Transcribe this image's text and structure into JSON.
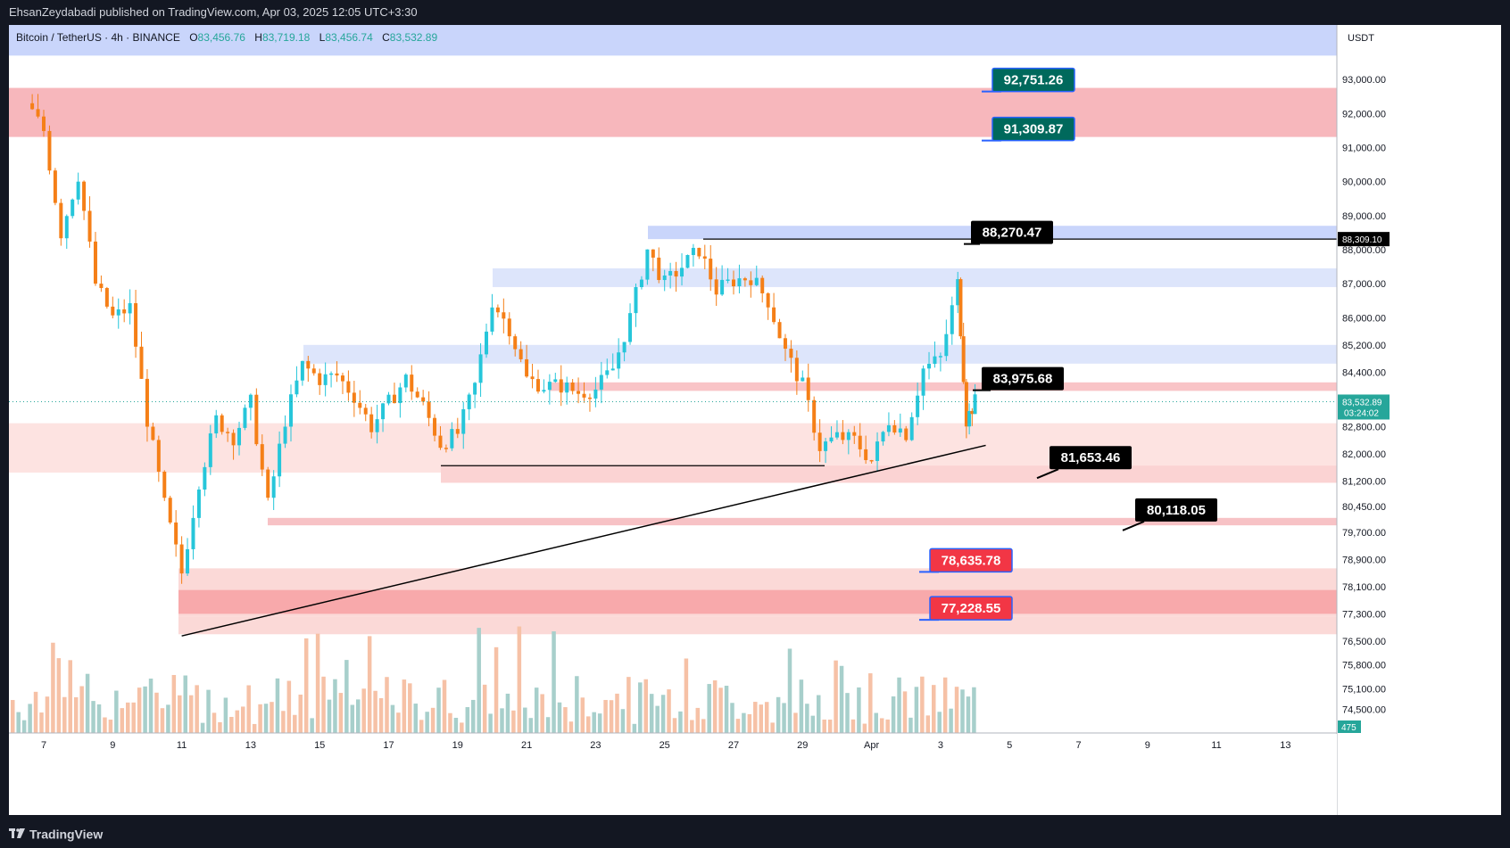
{
  "header": {
    "published": "EhsanZeydabadi published on TradingView.com, Apr 03, 2025 12:05 UTC+3:30"
  },
  "legend": {
    "symbol": "Bitcoin / TetherUS · 4h · BINANCE",
    "o_label": "O",
    "o": "83,456.76",
    "h_label": "H",
    "h": "83,719.18",
    "l_label": "L",
    "l": "83,456.74",
    "c_label": "C",
    "c": "83,532.89"
  },
  "footer": {
    "brand": "TradingView"
  },
  "chart_data": {
    "type": "candlestick",
    "currency": "USDT",
    "ylim": [
      73800,
      94600
    ],
    "y_ticks": [
      "93,000.00",
      "92,000.00",
      "91,000.00",
      "90,000.00",
      "89,000.00",
      "88,000.00",
      "87,000.00",
      "86,000.00",
      "85,200.00",
      "84,400.00",
      "83,600.00",
      "82,800.00",
      "82,000.00",
      "81,200.00",
      "80,450.00",
      "79,700.00",
      "78,900.00",
      "78,100.00",
      "77,300.00",
      "76,500.00",
      "75,800.00",
      "75,100.00",
      "74,500.00"
    ],
    "x_ticks": [
      "7",
      "9",
      "11",
      "13",
      "15",
      "17",
      "19",
      "21",
      "23",
      "25",
      "27",
      "29",
      "Apr",
      "3",
      "5",
      "7",
      "9",
      "11",
      "13"
    ],
    "current_price": "83,532.89",
    "countdown": "03:24:02",
    "high_marker": "88,309.10",
    "volume_badge": "475",
    "callouts": [
      {
        "text": "92,751.26",
        "price": 92751.26,
        "style": "teal"
      },
      {
        "text": "91,309.87",
        "price": 91309.87,
        "style": "teal"
      },
      {
        "text": "88,270.47",
        "price": 88270.47,
        "style": "black"
      },
      {
        "text": "83,975.68",
        "price": 83975.68,
        "style": "black"
      },
      {
        "text": "81,653.46",
        "price": 81653.46,
        "style": "black"
      },
      {
        "text": "80,118.05",
        "price": 80118.05,
        "style": "black"
      },
      {
        "text": "78,635.78",
        "price": 78635.78,
        "style": "red"
      },
      {
        "text": "77,228.55",
        "price": 77228.55,
        "style": "red"
      }
    ],
    "zones": [
      {
        "kind": "supply",
        "from": 94600,
        "to": 93700,
        "color": "#c9d5fb"
      },
      {
        "kind": "supply",
        "from": 92751,
        "to": 91310,
        "color": "#f7b7bc"
      },
      {
        "kind": "supply",
        "from": 88700,
        "to": 88309,
        "color": "#c9d5fb"
      },
      {
        "kind": "supply",
        "from": 87450,
        "to": 86900,
        "color": "#dde5fb"
      },
      {
        "kind": "supply",
        "from": 85200,
        "to": 84650,
        "color": "#dde5fb"
      },
      {
        "kind": "demand",
        "from": 84100,
        "to": 83850,
        "color": "#f9c4c7"
      },
      {
        "kind": "demand",
        "from": 82900,
        "to": 81450,
        "color": "#fde3e1"
      },
      {
        "kind": "demand",
        "from": 81653,
        "to": 81150,
        "color": "#fbd3d3"
      },
      {
        "kind": "demand",
        "from": 80118,
        "to": 79900,
        "color": "#f7c2c5"
      },
      {
        "kind": "demand",
        "from": 78636,
        "to": 77228,
        "color": "#fbd9d7"
      },
      {
        "kind": "demand",
        "from": 78000,
        "to": 77300,
        "color": "#f8a9ab"
      },
      {
        "kind": "demand",
        "from": 77228,
        "to": 76700,
        "color": "#fbd9d7"
      }
    ],
    "trendline": {
      "from": {
        "date": "Mar 11",
        "price": 76650
      },
      "to": {
        "date": "Apr 3",
        "price": 82250
      }
    },
    "horizontal_lines": [
      81653,
      88309
    ],
    "close_path": [
      {
        "date": "Mar 6 12:00",
        "price": 92300
      },
      {
        "date": "Mar 7",
        "price": 91500
      },
      {
        "date": "Mar 7 12:00",
        "price": 88500
      },
      {
        "date": "Mar 8",
        "price": 90200
      },
      {
        "date": "Mar 8 12:00",
        "price": 87000
      },
      {
        "date": "Mar 9",
        "price": 86000
      },
      {
        "date": "Mar 9 12:00",
        "price": 86300
      },
      {
        "date": "Mar 10",
        "price": 83000
      },
      {
        "date": "Mar 10 12:00",
        "price": 80500
      },
      {
        "date": "Mar 11",
        "price": 78500
      },
      {
        "date": "Mar 11 12:00",
        "price": 81200
      },
      {
        "date": "Mar 12",
        "price": 83000
      },
      {
        "date": "Mar 12 12:00",
        "price": 82500
      },
      {
        "date": "Mar 13",
        "price": 83500
      },
      {
        "date": "Mar 13 12:00",
        "price": 80500
      },
      {
        "date": "Mar 14",
        "price": 83000
      },
      {
        "date": "Mar 14 12:00",
        "price": 84600
      },
      {
        "date": "Mar 15",
        "price": 84200
      },
      {
        "date": "Mar 15 12:00",
        "price": 84300
      },
      {
        "date": "Mar 16",
        "price": 83700
      },
      {
        "date": "Mar 16 12:00",
        "price": 82800
      },
      {
        "date": "Mar 17",
        "price": 83500
      },
      {
        "date": "Mar 17 12:00",
        "price": 84200
      },
      {
        "date": "Mar 18",
        "price": 83400
      },
      {
        "date": "Mar 18 12:00",
        "price": 82300
      },
      {
        "date": "Mar 19",
        "price": 82600
      },
      {
        "date": "Mar 19 12:00",
        "price": 84000
      },
      {
        "date": "Mar 20",
        "price": 86500
      },
      {
        "date": "Mar 20 12:00",
        "price": 85700
      },
      {
        "date": "Mar 21",
        "price": 84200
      },
      {
        "date": "Mar 21 12:00",
        "price": 84000
      },
      {
        "date": "Mar 22",
        "price": 84000
      },
      {
        "date": "Mar 22 12:00",
        "price": 83800
      },
      {
        "date": "Mar 23",
        "price": 83900
      },
      {
        "date": "Mar 23 12:00",
        "price": 84500
      },
      {
        "date": "Mar 24",
        "price": 86000
      },
      {
        "date": "Mar 24 12:00",
        "price": 88000
      },
      {
        "date": "Mar 25",
        "price": 87000
      },
      {
        "date": "Mar 25 12:00",
        "price": 87500
      },
      {
        "date": "Mar 26",
        "price": 88000
      },
      {
        "date": "Mar 26 12:00",
        "price": 86800
      },
      {
        "date": "Mar 27",
        "price": 87100
      },
      {
        "date": "Mar 27 12:00",
        "price": 87200
      },
      {
        "date": "Mar 28",
        "price": 86500
      },
      {
        "date": "Mar 28 12:00",
        "price": 85000
      },
      {
        "date": "Mar 29",
        "price": 84000
      },
      {
        "date": "Mar 29 12:00",
        "price": 82200
      },
      {
        "date": "Mar 30",
        "price": 82500
      },
      {
        "date": "Mar 30 12:00",
        "price": 82400
      },
      {
        "date": "Mar 31",
        "price": 81800
      },
      {
        "date": "Mar 31 12:00",
        "price": 83000
      },
      {
        "date": "Apr 1",
        "price": 82600
      },
      {
        "date": "Apr 1 12:00",
        "price": 84500
      },
      {
        "date": "Apr 2",
        "price": 84800
      },
      {
        "date": "Apr 2 12:00",
        "price": 87000
      },
      {
        "date": "Apr 2 18:00",
        "price": 83000
      },
      {
        "date": "Apr 3",
        "price": 83532
      }
    ]
  }
}
